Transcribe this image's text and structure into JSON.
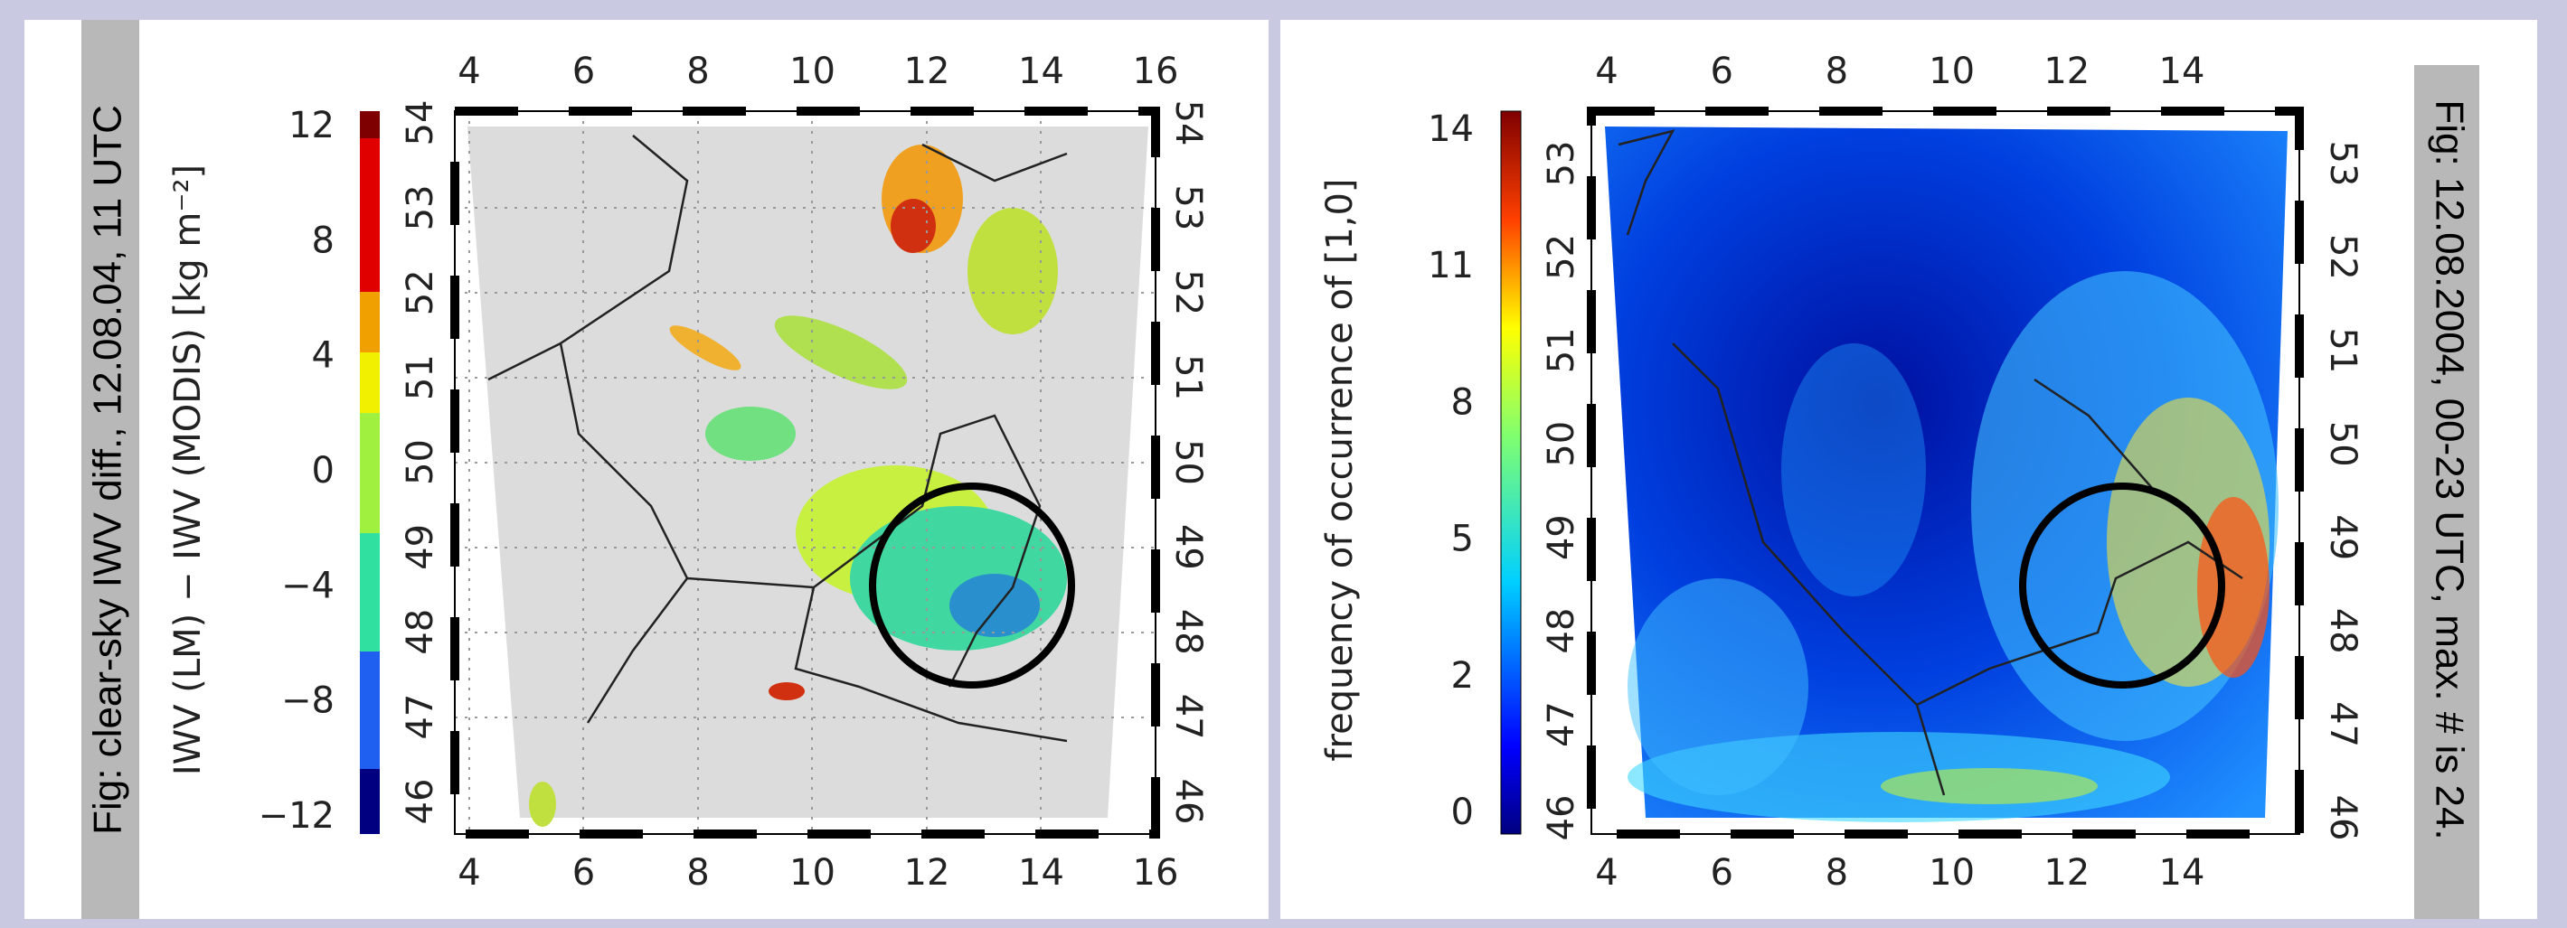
{
  "panels": [
    {
      "caption": "Fig: clear-sky IWV diff., 12.08.04, 11 UTC",
      "colorbar_label": "IWV (LM) − IWV (MODIS) [kg m⁻²]",
      "colorbar_ticks": [
        "12",
        "8",
        "4",
        "0",
        "−4",
        "−8",
        "−12"
      ],
      "lon_labels": [
        "4",
        "6",
        "8",
        "10",
        "12",
        "14",
        "16"
      ],
      "lat_labels": [
        "54",
        "53",
        "52",
        "51",
        "50",
        "49",
        "48",
        "47",
        "46"
      ]
    },
    {
      "caption": "Fig: 12.08.2004, 00-23 UTC, max. # is 24.",
      "colorbar_label": "frequency of occurrence of [1,0]",
      "colorbar_ticks": [
        "14",
        "11",
        "8",
        "5",
        "2",
        "0"
      ],
      "lon_labels": [
        "4",
        "6",
        "8",
        "10",
        "12",
        "14"
      ],
      "lat_labels": [
        "53",
        "52",
        "51",
        "50",
        "49",
        "48",
        "47",
        "46"
      ]
    }
  ]
}
